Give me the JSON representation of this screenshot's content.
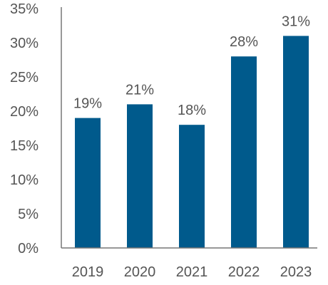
{
  "chart_data": {
    "type": "bar",
    "categories": [
      "2019",
      "2020",
      "2021",
      "2022",
      "2023"
    ],
    "values": [
      19,
      21,
      18,
      28,
      31
    ],
    "data_labels": [
      "19%",
      "21%",
      "18%",
      "28%",
      "31%"
    ],
    "title": "",
    "xlabel": "",
    "ylabel": "",
    "ylim": [
      0,
      35
    ],
    "yticks": [
      0,
      5,
      10,
      15,
      20,
      25,
      30,
      35
    ],
    "ytick_labels": [
      "0%",
      "5%",
      "10%",
      "15%",
      "20%",
      "25%",
      "30%",
      "35%"
    ],
    "grid": false,
    "legend": "none",
    "bar_color": "#005a8c",
    "axis_color": "#777777",
    "text_color": "#555555"
  }
}
